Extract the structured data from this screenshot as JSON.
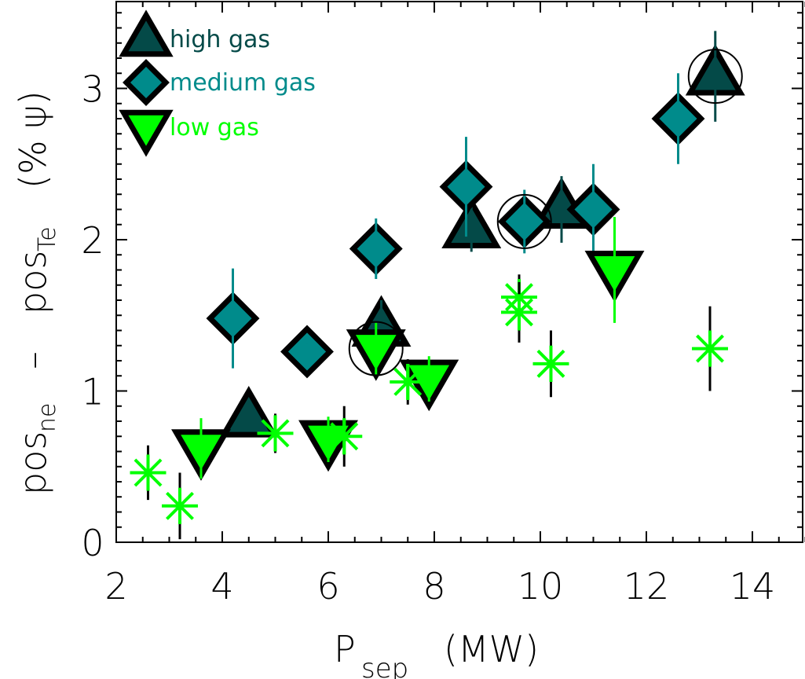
{
  "chart_data": {
    "type": "scatter",
    "title": "",
    "xlabel": "P_sep (MW)",
    "xlabel_main": "P",
    "xlabel_sub": "sep",
    "xlabel_unit": "(MW)",
    "ylabel": "pos_ne - pos_Te (% ψ)",
    "ylabel_parts": {
      "p1": "pos",
      "s1": "ne",
      "dash": "–",
      "p2": "pos",
      "s2": "Te",
      "unit": "(% ψ)"
    },
    "xlim": [
      2,
      15
    ],
    "ylim": [
      0,
      3.6
    ],
    "xticks": [
      2,
      4,
      6,
      8,
      10,
      12,
      14
    ],
    "yticks": [
      0,
      1,
      2,
      3
    ],
    "grid": false,
    "legend_position": "upper left",
    "colors": {
      "high_gas": "#044a48",
      "medium_gas": "#008b8b",
      "low_gas": "#00ff00",
      "asterisk": "#00ff00"
    },
    "series": [
      {
        "name": "high gas",
        "marker": "triangle-up",
        "color": "#044a48",
        "points": [
          {
            "x": 4.5,
            "y": 0.82,
            "err": 0.0,
            "circled": false
          },
          {
            "x": 7.0,
            "y": 1.42,
            "err": 0.18,
            "circled": false
          },
          {
            "x": 8.7,
            "y": 2.07,
            "err": 0.15,
            "circled": false
          },
          {
            "x": 10.4,
            "y": 2.2,
            "err": 0.22,
            "circled": false
          },
          {
            "x": 13.3,
            "y": 3.08,
            "err": 0.3,
            "circled": true
          }
        ]
      },
      {
        "name": "medium gas",
        "marker": "diamond",
        "color": "#008b8b",
        "points": [
          {
            "x": 4.2,
            "y": 1.48,
            "err": 0.33,
            "circled": false
          },
          {
            "x": 5.6,
            "y": 1.26,
            "err": 0.05,
            "circled": false
          },
          {
            "x": 6.9,
            "y": 1.94,
            "err": 0.2,
            "circled": false
          },
          {
            "x": 8.6,
            "y": 2.35,
            "err": 0.33,
            "circled": false
          },
          {
            "x": 9.7,
            "y": 2.12,
            "err": 0.21,
            "circled": true
          },
          {
            "x": 11.0,
            "y": 2.2,
            "err": 0.3,
            "circled": false
          },
          {
            "x": 12.6,
            "y": 2.8,
            "err": 0.3,
            "circled": false
          }
        ]
      },
      {
        "name": "low gas",
        "marker": "triangle-down",
        "color": "#00ff00",
        "points": [
          {
            "x": 3.6,
            "y": 0.62,
            "err": 0.2,
            "circled": false
          },
          {
            "x": 6.0,
            "y": 0.68,
            "err": 0.15,
            "circled": false
          },
          {
            "x": 6.9,
            "y": 1.28,
            "err": 0.17,
            "circled": true
          },
          {
            "x": 7.9,
            "y": 1.08,
            "err": 0.15,
            "circled": false
          },
          {
            "x": 11.4,
            "y": 1.8,
            "err": 0.35,
            "circled": false
          }
        ]
      },
      {
        "name": "unlabeled (asterisk)",
        "marker": "asterisk",
        "color": "#00ff00",
        "points": [
          {
            "x": 2.6,
            "y": 0.46,
            "err": 0.18
          },
          {
            "x": 3.2,
            "y": 0.24,
            "err": 0.22
          },
          {
            "x": 5.0,
            "y": 0.72,
            "err": 0.13
          },
          {
            "x": 6.3,
            "y": 0.7,
            "err": 0.2
          },
          {
            "x": 7.5,
            "y": 1.06,
            "err": 0.15
          },
          {
            "x": 9.6,
            "y": 1.62,
            "err": 0.15
          },
          {
            "x": 9.6,
            "y": 1.52,
            "err": 0.2
          },
          {
            "x": 10.2,
            "y": 1.18,
            "err": 0.22
          },
          {
            "x": 13.2,
            "y": 1.28,
            "err": 0.28
          }
        ]
      }
    ],
    "legend": [
      {
        "label": "high gas",
        "marker": "triangle-up",
        "color": "#044a48"
      },
      {
        "label": "medium gas",
        "marker": "diamond",
        "color": "#008b8b"
      },
      {
        "label": "low gas",
        "marker": "triangle-down",
        "color": "#00ff00"
      }
    ]
  }
}
